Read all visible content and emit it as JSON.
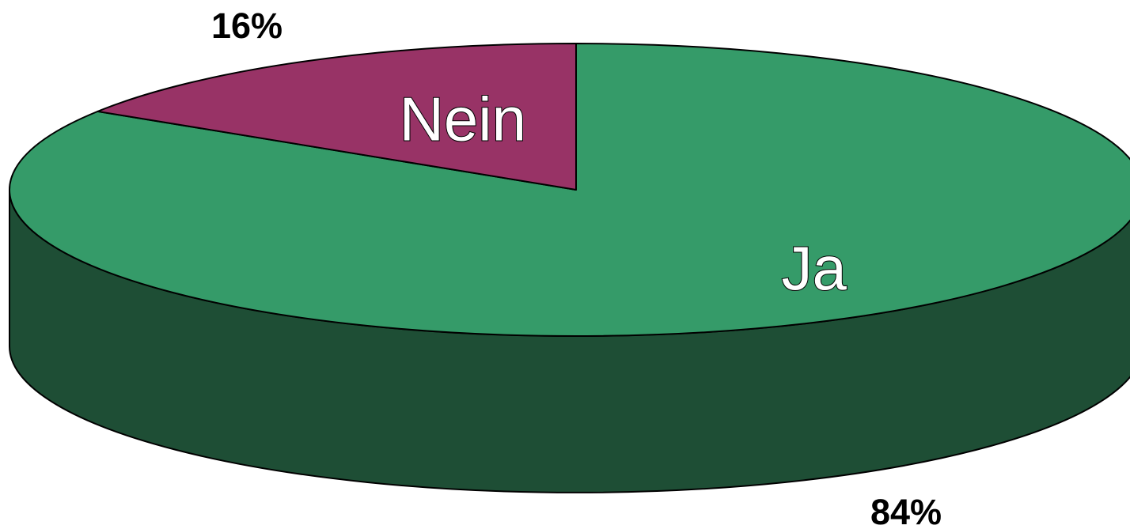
{
  "chart_data": {
    "type": "pie",
    "style": "3d",
    "slices": [
      {
        "label": "Ja",
        "value": 84,
        "value_label": "84%",
        "color": "#359B69",
        "side_color": "#1E4E35"
      },
      {
        "label": "Nein",
        "value": 16,
        "value_label": "16%",
        "color": "#983366",
        "side_color": "#5C1F3F"
      }
    ],
    "legend": "none"
  }
}
